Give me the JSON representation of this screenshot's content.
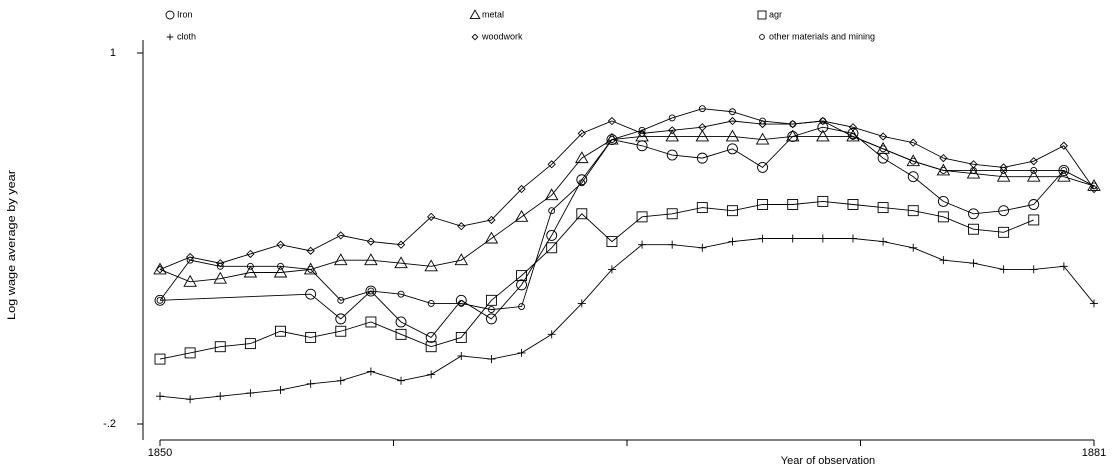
{
  "chart_data": {
    "type": "line",
    "x_label": "Year of observation",
    "y_label": "Log wage average by year",
    "x": [
      1850,
      1851,
      1852,
      1853,
      1854,
      1855,
      1856,
      1857,
      1858,
      1859,
      1860,
      1861,
      1862,
      1863,
      1864,
      1865,
      1866,
      1867,
      1868,
      1869,
      1870,
      1871,
      1872,
      1873,
      1874,
      1875,
      1876,
      1877,
      1878,
      1879,
      1880,
      1881
    ],
    "xlim": [
      1850,
      1881
    ],
    "xticks": [
      1850,
      {
        "value": 1857.75,
        "label": null
      },
      {
        "value": 1865.5,
        "label": null
      },
      {
        "value": 1873.25,
        "label": null
      },
      1881
    ],
    "ylim": [
      -0.2,
      1
    ],
    "yticks": [
      {
        "value": -0.2,
        "label": "-.2"
      },
      1
    ],
    "series": [
      {
        "name": "Iron",
        "marker": "circle",
        "color": "#000000",
        "x": [
          1850,
          1855,
          1856,
          1857,
          1858,
          1859,
          1860,
          1861,
          1862,
          1863,
          1864,
          1865,
          1866,
          1867,
          1868,
          1869,
          1870,
          1871,
          1872,
          1873,
          1874,
          1875,
          1876,
          1877,
          1878,
          1879,
          1880
        ],
        "values": [
          0.2,
          0.22,
          0.14,
          0.23,
          0.13,
          0.08,
          0.2,
          0.14,
          0.25,
          0.41,
          0.59,
          0.72,
          0.7,
          0.67,
          0.66,
          0.69,
          0.63,
          0.73,
          0.76,
          0.74,
          0.66,
          0.6,
          0.52,
          0.48,
          0.49,
          0.51,
          0.62
        ]
      },
      {
        "name": "metal",
        "marker": "triangle",
        "color": "#000000",
        "values": [
          0.3,
          0.26,
          0.27,
          0.29,
          0.29,
          0.3,
          0.33,
          0.33,
          0.32,
          0.31,
          0.33,
          0.4,
          0.47,
          0.54,
          0.66,
          0.72,
          0.73,
          0.73,
          0.73,
          0.73,
          0.72,
          0.73,
          0.73,
          0.73,
          0.69,
          0.65,
          0.62,
          0.61,
          0.6,
          0.6,
          0.6,
          0.57
        ]
      },
      {
        "name": "agr",
        "marker": "square",
        "color": "#000000",
        "values": [
          0.01,
          0.03,
          0.05,
          0.06,
          0.1,
          0.08,
          0.1,
          0.13,
          0.09,
          0.05,
          0.08,
          0.2,
          0.28,
          0.37,
          0.48,
          0.39,
          0.47,
          0.48,
          0.5,
          0.49,
          0.51,
          0.51,
          0.52,
          0.51,
          0.5,
          0.49,
          0.47,
          0.43,
          0.42,
          0.46,
          null,
          null
        ]
      },
      {
        "name": "cloth",
        "marker": "plus",
        "color": "#000000",
        "values": [
          -0.11,
          -0.12,
          -0.11,
          -0.1,
          -0.09,
          -0.07,
          -0.06,
          -0.03,
          -0.06,
          -0.04,
          0.02,
          0.01,
          0.03,
          0.09,
          0.19,
          0.3,
          0.38,
          0.38,
          0.37,
          0.39,
          0.4,
          0.4,
          0.4,
          0.4,
          0.39,
          0.37,
          0.33,
          0.32,
          0.3,
          0.3,
          0.31,
          0.19
        ]
      },
      {
        "name": "woodwork",
        "marker": "diamond",
        "color": "#000000",
        "values": [
          0.3,
          0.34,
          0.32,
          0.35,
          0.38,
          0.36,
          0.41,
          0.39,
          0.38,
          0.47,
          0.44,
          0.46,
          0.56,
          0.64,
          0.74,
          0.78,
          0.74,
          0.75,
          0.76,
          0.78,
          0.77,
          0.77,
          0.78,
          0.76,
          0.73,
          0.71,
          0.66,
          0.64,
          0.63,
          0.65,
          0.7,
          0.56
        ]
      },
      {
        "name": "other materials and mining",
        "marker": "small-circle",
        "color": "#000000",
        "values": [
          0.2,
          0.33,
          0.31,
          0.31,
          0.31,
          0.3,
          0.2,
          0.23,
          0.22,
          0.19,
          0.19,
          0.17,
          0.18,
          0.49,
          0.58,
          0.72,
          0.75,
          0.79,
          0.82,
          0.81,
          0.78,
          0.77,
          0.78,
          0.73,
          0.69,
          0.65,
          0.62,
          0.62,
          0.62,
          0.62,
          0.62,
          0.57
        ]
      }
    ]
  }
}
